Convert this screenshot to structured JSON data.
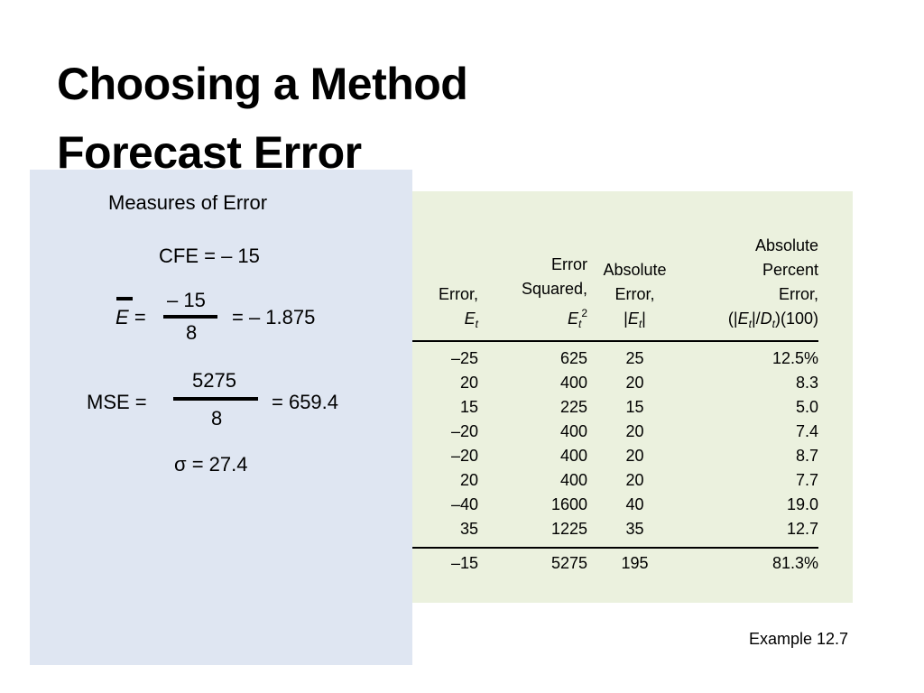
{
  "slide": {
    "title_line1": "Choosing a Method",
    "title_line2": "Forecast Error",
    "example_label": "Example 12.7"
  },
  "measures": {
    "heading": "Measures of Error",
    "cfe": "CFE = – 15",
    "ebar_symbol": "E",
    "ebar_equals": "=",
    "ebar_numerator": "– 15",
    "ebar_denominator": "8",
    "ebar_result": "= – 1.875",
    "mse_label": "MSE =",
    "mse_numerator": "5275",
    "mse_denominator": "8",
    "mse_result": "= 659.4",
    "sigma_symbol": "σ",
    "sigma_value": "= 27.4"
  },
  "table": {
    "headers": {
      "col1_line1": "Error,",
      "col1_symbol": "E",
      "col1_sub": "t",
      "col2_line1": "Error",
      "col2_line2": "Squared,",
      "col2_symbol": "E",
      "col2_sub": "t",
      "col2_sup": "2",
      "col3_line1": "Absolute",
      "col3_line2": "Error,",
      "col3_open": "|",
      "col3_symbol": "E",
      "col3_sub": "t",
      "col3_close": "|",
      "col4_line1": "Absolute",
      "col4_line2": "Percent",
      "col4_line3": "Error,",
      "col4_open": "(|",
      "col4_e": "E",
      "col4_e_sub": "t",
      "col4_mid": "|/",
      "col4_d": "D",
      "col4_d_sub": "t",
      "col4_close": ")(100)"
    },
    "rows": [
      [
        "–25",
        "625",
        "25",
        "12.5%"
      ],
      [
        "20",
        "400",
        "20",
        "8.3"
      ],
      [
        "15",
        "225",
        "15",
        "5.0"
      ],
      [
        "–20",
        "400",
        "20",
        "7.4"
      ],
      [
        "–20",
        "400",
        "20",
        "8.7"
      ],
      [
        "20",
        "400",
        "20",
        "7.7"
      ],
      [
        "–40",
        "1600",
        "40",
        "19.0"
      ],
      [
        "35",
        "1225",
        "35",
        "12.7"
      ]
    ],
    "totals": [
      "–15",
      "5275",
      "195",
      "81.3%"
    ]
  }
}
